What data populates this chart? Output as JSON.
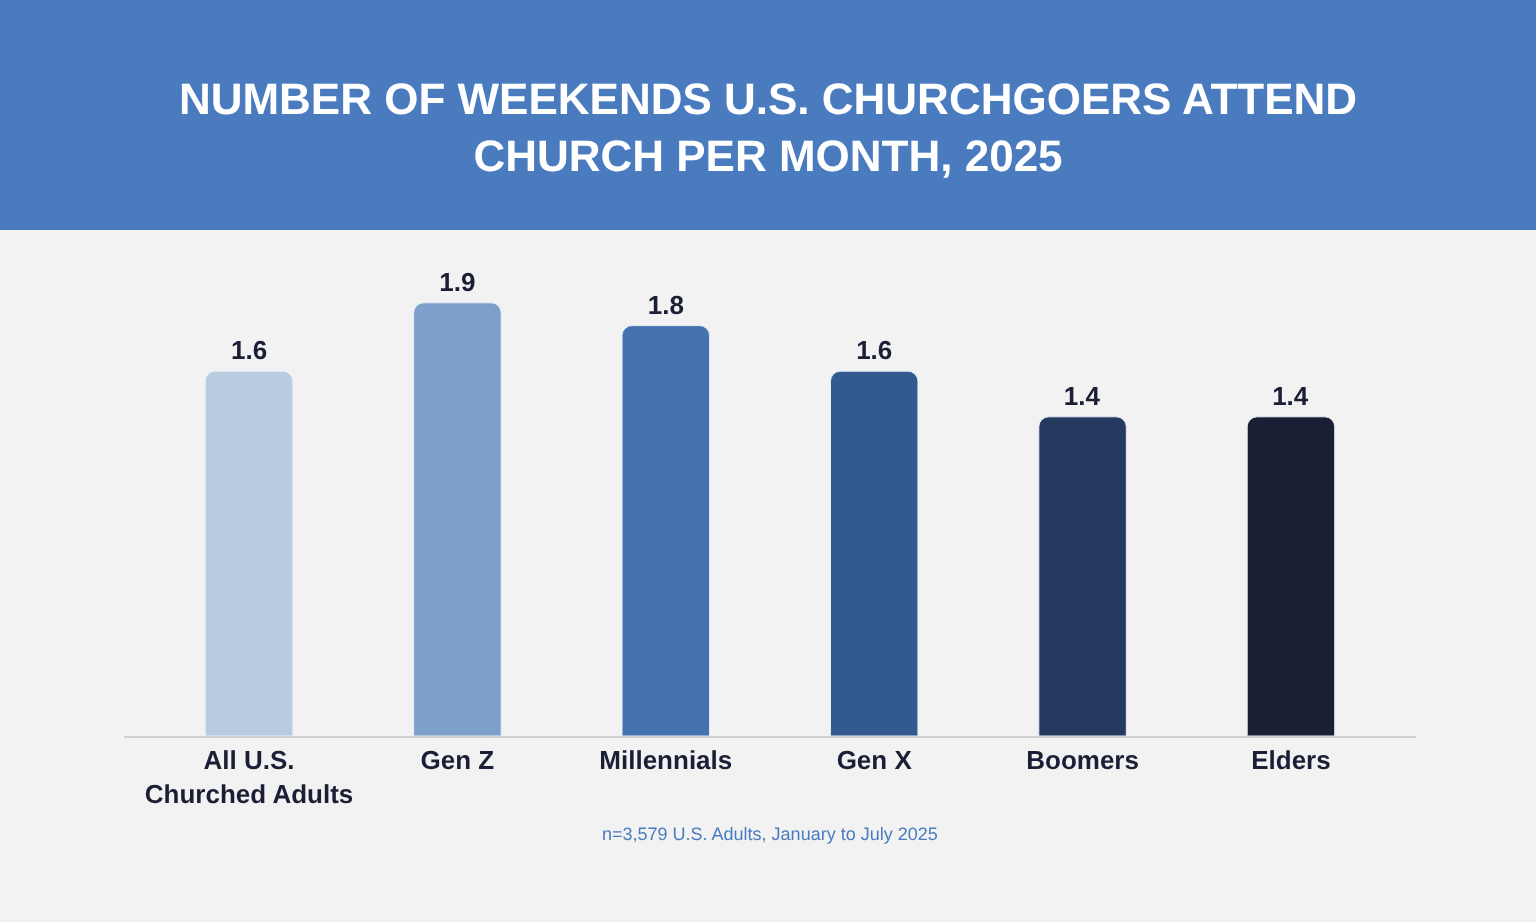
{
  "chart_data": {
    "type": "bar",
    "title": "NUMBER OF WEEKENDS U.S. CHURCHGOERS ATTEND CHURCH PER MONTH, 2025",
    "categories": [
      "All U.S. Churched Adults",
      "Gen Z",
      "Millennials",
      "Gen X",
      "Boomers",
      "Elders"
    ],
    "values": [
      1.6,
      1.9,
      1.8,
      1.6,
      1.4,
      1.4
    ],
    "colors": [
      "#b8cbe0",
      "#7f9fcb",
      "#4472b0",
      "#335a8e",
      "#243a5e",
      "#1a1f35"
    ],
    "data_labels": true,
    "grid": false,
    "legend": false,
    "annotations": [
      "n=3,579 U.S. Adults, January to July 2025"
    ]
  }
}
